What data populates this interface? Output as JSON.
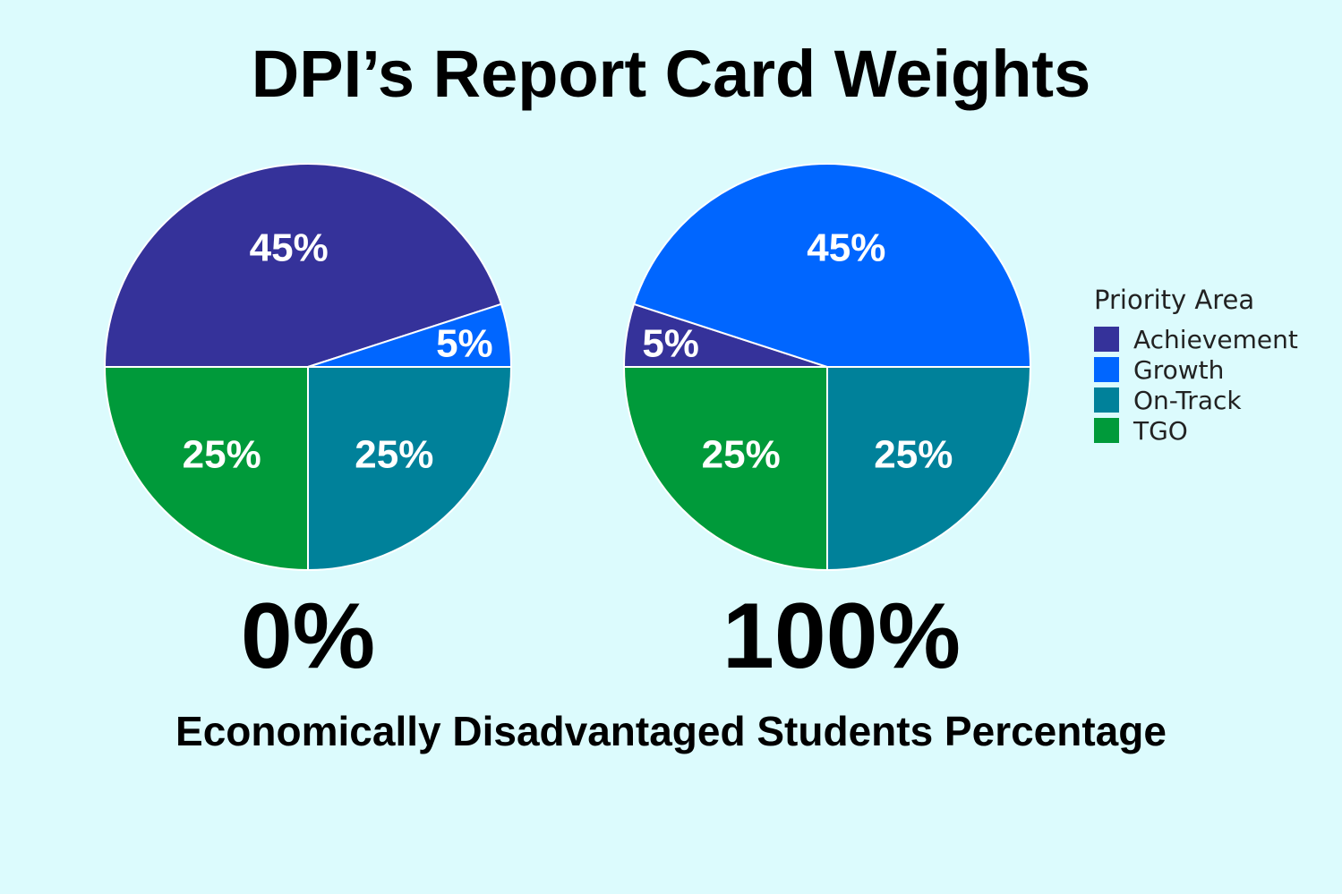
{
  "title": "DPI’s Report Card Weights",
  "xlabel": "Economically Disadvantaged Students Percentage",
  "legend": {
    "title": "Priority Area",
    "items": [
      {
        "label": "Achievement",
        "color": "#35329a"
      },
      {
        "label": "Growth",
        "color": "#0066ff"
      },
      {
        "label": "On-Track",
        "color": "#00819a"
      },
      {
        "label": "TGO",
        "color": "#009a3a"
      }
    ]
  },
  "chart_data": [
    {
      "type": "pie",
      "caption": "0%",
      "slices": [
        {
          "category": "Achievement",
          "value": 45,
          "label": "45%"
        },
        {
          "category": "Growth",
          "value": 5,
          "label": "5%"
        },
        {
          "category": "On-Track",
          "value": 25,
          "label": "25%"
        },
        {
          "category": "TGO",
          "value": 25,
          "label": "25%"
        }
      ]
    },
    {
      "type": "pie",
      "caption": "100%",
      "slices": [
        {
          "category": "Achievement",
          "value": 5,
          "label": "5%"
        },
        {
          "category": "Growth",
          "value": 45,
          "label": "45%"
        },
        {
          "category": "On-Track",
          "value": 25,
          "label": "25%"
        },
        {
          "category": "TGO",
          "value": 25,
          "label": "25%"
        }
      ]
    }
  ]
}
